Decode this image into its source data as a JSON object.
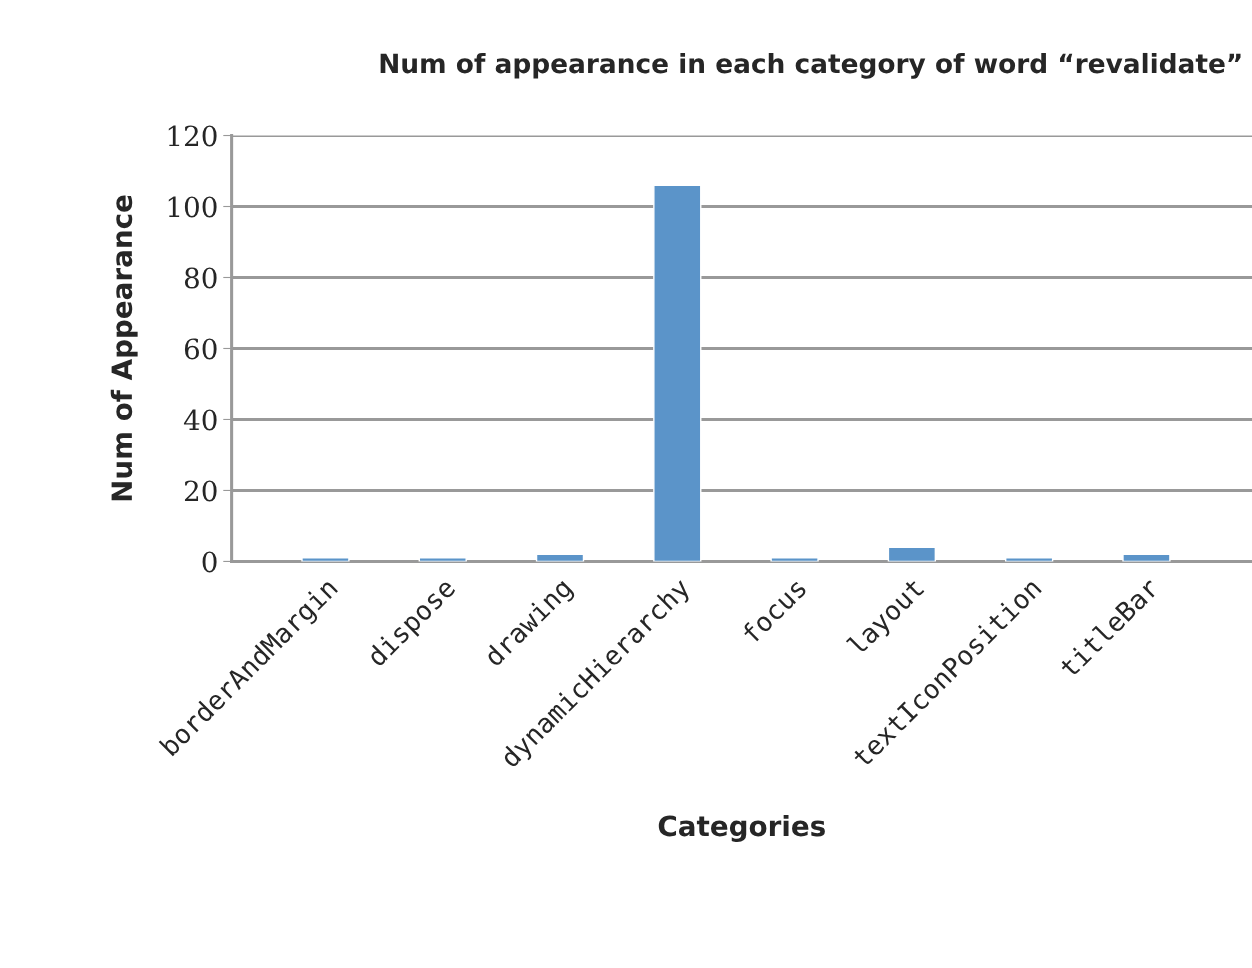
{
  "chart_data": {
    "type": "bar",
    "title": "Num of appearance in each category of word “revalidate”",
    "xlabel": "Categories",
    "ylabel": "Num of Appearance",
    "categories": [
      "borderAndMargin",
      "dispose",
      "drawing",
      "dynamicHierarchy",
      "focus",
      "layout",
      "textIconPosition",
      "titleBar"
    ],
    "values": [
      1,
      1,
      2,
      106,
      1,
      4,
      1,
      2
    ],
    "color": "#5b94c9",
    "ylim": [
      0,
      120
    ],
    "yticks": [
      0,
      20,
      40,
      60,
      80,
      100,
      120
    ],
    "grid": "y",
    "legend": false
  }
}
